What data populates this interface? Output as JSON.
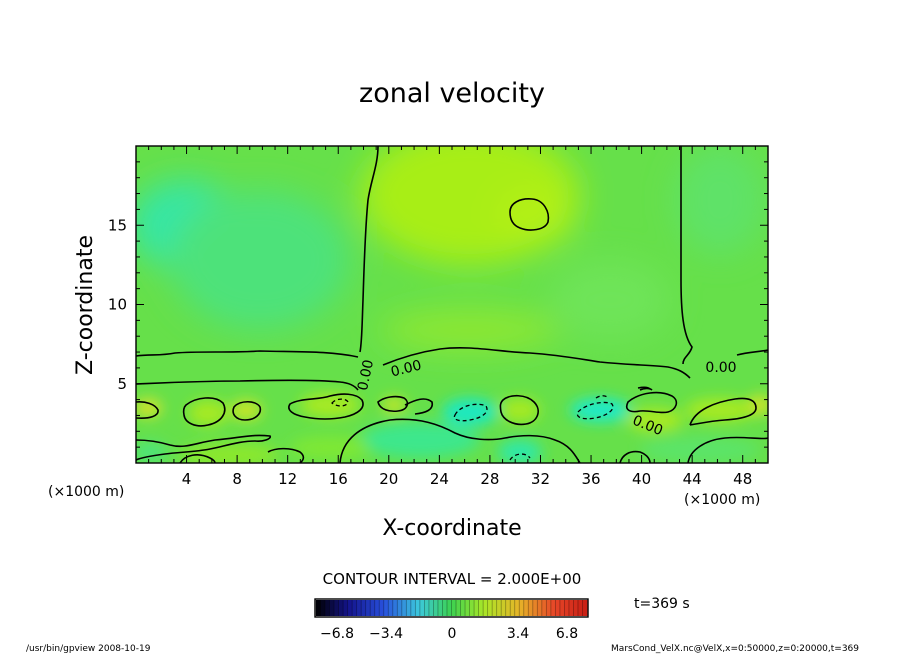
{
  "chart_data": {
    "type": "heatmap",
    "title": "zonal velocity",
    "xlabel": "X-coordinate",
    "ylabel": "Z-coordinate",
    "x_unit": "(×1000 m)",
    "x_ticks": [
      4,
      8,
      12,
      16,
      20,
      24,
      28,
      32,
      36,
      40,
      44,
      48
    ],
    "y_ticks": [
      5,
      10,
      15
    ],
    "xlim": [
      0,
      50
    ],
    "ylim": [
      0,
      20
    ],
    "contour_interval_text": "CONTOUR INTERVAL = 2.000E+00",
    "contour_labels": [
      "0.00",
      "0.00",
      "0.00",
      "0.00"
    ],
    "colorbar": {
      "ticks": [
        "-6.8",
        "-3.4",
        "0",
        "3.4",
        "6.8"
      ],
      "range": [
        -6.8,
        6.8
      ]
    },
    "time_text": "t=369 s",
    "colors": {
      "background_field": "#66e04a",
      "positive_weak": "#a5ee1c",
      "negative_weak": "#3ee58a",
      "negative_strong": "#18ecc4",
      "positive_strong": "#c9e52a"
    }
  },
  "footer": {
    "left": "/usr/bin/gpview  2008-10-19",
    "right": "MarsCond_VelX.nc@VelX,x=0:50000,z=0:20000,t=369"
  }
}
